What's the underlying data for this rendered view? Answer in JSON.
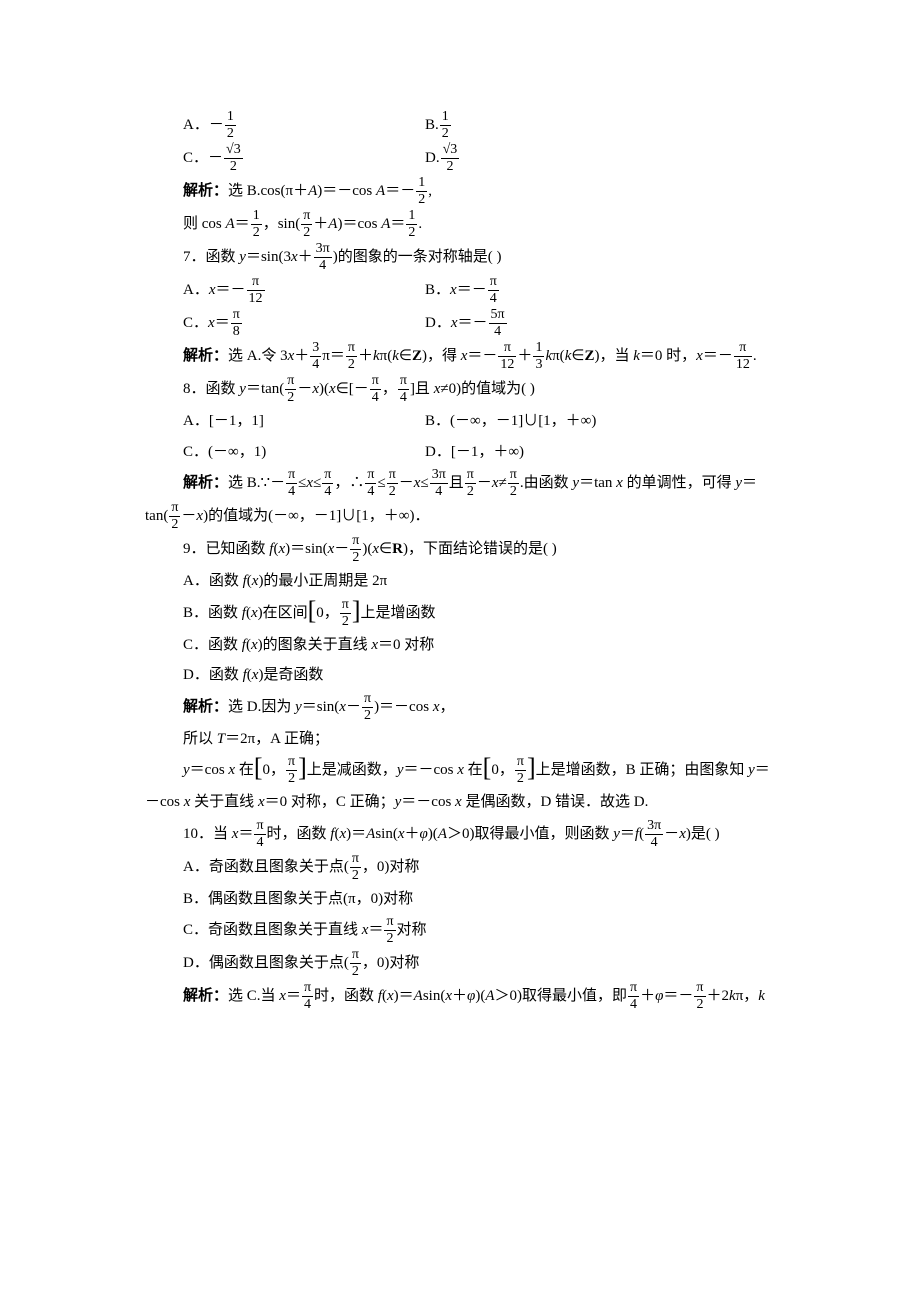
{
  "q6": {
    "optA": "A．－",
    "fracA": {
      "num": "1",
      "den": "2"
    },
    "optB": "B.",
    "fracB": {
      "num": "1",
      "den": "2"
    },
    "optC": "C．－",
    "fracC": {
      "num": "√3",
      "den": "2"
    },
    "optD": "D.",
    "fracD": {
      "num": "√3",
      "den": "2"
    },
    "sol1a": "解析：",
    "sol1b": "选 B.cos(π＋",
    "sol1c": ")＝－cos ",
    "sol1d": "＝－",
    "sol2a": "则 cos ",
    "sol2b": "＝",
    "sol2c": "，sin(",
    "sol2d": "＋",
    "sol2e": ")＝cos ",
    "sol2f": "＝",
    "A": "A",
    "half": {
      "num": "1",
      "den": "2"
    },
    "pi2": {
      "num": "π",
      "den": "2"
    },
    "period": "."
  },
  "q7": {
    "stem1": "7．函数 ",
    "stem2": "＝sin(3",
    "stem3": "＋",
    "frac_3pi4": {
      "num": "3π",
      "den": "4"
    },
    "stem4": ")的图象的一条对称轴是(        )",
    "optA1": "A．",
    "optA2": "＝－",
    "fracA": {
      "num": "π",
      "den": "12"
    },
    "optB1": "B．",
    "optB2": "＝－",
    "fracB": {
      "num": "π",
      "den": "4"
    },
    "optC1": "C．",
    "optC2": "＝",
    "fracC": {
      "num": "π",
      "den": "8"
    },
    "optD1": "D．",
    "optD2": "＝－",
    "fracD": {
      "num": "5π",
      "den": "4"
    },
    "sol1": "解析：",
    "sol2": "选 A.令 3",
    "sol3": "＋",
    "frac34": {
      "num": "3",
      "den": "4"
    },
    "sol4": "π＝",
    "fracpi2": {
      "num": "π",
      "den": "2"
    },
    "sol5": "＋",
    "sol6": "π(",
    "sol7": "∈",
    "sol8": ")，得 ",
    "sol9": "＝－",
    "fracpi12": {
      "num": "π",
      "den": "12"
    },
    "sol10": "＋",
    "frac13": {
      "num": "1",
      "den": "3"
    },
    "sol11": "π(",
    "sol12": "∈",
    "sol13": ")，当 ",
    "sol14": "＝0 时，",
    "sol15": "＝－",
    "y": "y",
    "x": "x",
    "k": "k",
    "Z": "Z",
    "period": "."
  },
  "q8": {
    "stem1": "8．函数 ",
    "stem2": "＝tan(",
    "fracpi2": {
      "num": "π",
      "den": "2"
    },
    "stem3": "－",
    "stem4": ")(",
    "stem5": "∈[－",
    "fracpi4": {
      "num": "π",
      "den": "4"
    },
    "stem6": "，",
    "stem7": "]且 ",
    "stem8": "≠0)的值域为(        )",
    "optA": "A．[－1，1]",
    "optB": "B．(－∞，－1]∪[1，＋∞)",
    "optC": "C．(－∞，1)",
    "optD": "D．[－1，＋∞)",
    "sol1": "解析：",
    "sol2": "选 B.∵－",
    "sol3": "≤",
    "sol4": "≤",
    "sol5": "，∴",
    "sol6": "≤",
    "sol7": "－",
    "sol8": "≤",
    "frac3pi4": {
      "num": "3π",
      "den": "4"
    },
    "sol9": "且",
    "sol10": "－",
    "sol11": "≠",
    "sol12": ".由函数 ",
    "sol13": "＝tan ",
    "sol14": " 的单调性，可得 ",
    "sol15": "＝",
    "sol_line2a": "tan(",
    "sol_line2b": "－",
    "sol_line2c": ")的值域为(－∞，－1]∪[1，＋∞)．",
    "y": "y",
    "x": "x"
  },
  "q9": {
    "stem1": "9．已知函数 ",
    "stem2": "(",
    "stem3": ")＝sin(",
    "stem4": "－",
    "fracpi2": {
      "num": "π",
      "den": "2"
    },
    "stem5": ")(",
    "stem6": "∈",
    "stem7": ")，下面结论错误的是(        )",
    "optA1": "A．函数 ",
    "optA2": "(",
    "optA3": ")的最小正周期是 2π",
    "optB1": "B．函数 ",
    "optB2": "(",
    "optB3": ")在区间",
    "optB4": "0，",
    "optB5": "上是增函数",
    "optC1": "C．函数 ",
    "optC2": "(",
    "optC3": ")的图象关于直线 ",
    "optC4": "＝0 对称",
    "optD1": "D．函数 ",
    "optD2": "(",
    "optD3": ")是奇函数",
    "sol1": "解析：",
    "sol2": "选 D.因为 ",
    "sol3": "＝sin(",
    "sol4": "－",
    "sol5": ")＝－cos ",
    "sol_line2": "所以 ",
    "sol_T": "T",
    "sol_line2b": "＝2π，A 正确；",
    "sol_line3a": "＝cos ",
    "sol_line3b": " 在",
    "sol_line3c": "0，",
    "sol_line3d": "上是减函数，",
    "sol_line3e": "＝－cos ",
    "sol_line3f": " 在",
    "sol_line3g": "上是增函数，B 正确；由图象知 ",
    "sol_line3h": "＝",
    "sol_line4a": "－cos ",
    "sol_line4b": " 关于直线 ",
    "sol_line4c": "＝0 对称，C 正确；",
    "sol_line4d": "＝－cos ",
    "sol_line4e": " 是偶函数，D 错误．故选 D.",
    "f": "f",
    "x": "x",
    "y": "y",
    "R": "R",
    "comma": "，"
  },
  "q10": {
    "stem1": "10．当 ",
    "stem2": "＝",
    "fracpi4": {
      "num": "π",
      "den": "4"
    },
    "stem3": "时，函数 ",
    "stem4": "(",
    "stem5": ")＝",
    "stem6": "sin(",
    "stem7": "＋",
    "stem8": ")(",
    "stem9": "＞0)取得最小值，则函数 ",
    "stem10": "＝",
    "stem11": "(",
    "frac3pi4": {
      "num": "3π",
      "den": "4"
    },
    "stem12": "－",
    "stem13": ")是(        )",
    "optA1": "A．奇函数且图象关于点(",
    "fracpi2": {
      "num": "π",
      "den": "2"
    },
    "optA2": "，0)对称",
    "optB": "B．偶函数且图象关于点(π，0)对称",
    "optC1": "C．奇函数且图象关于直线 ",
    "optC2": "＝",
    "optC3": "对称",
    "optD1": "D．偶函数且图象关于点(",
    "optD2": "，0)对称",
    "sol1": "解析：",
    "sol2": "选 C.当 ",
    "sol3": "＝",
    "sol4": "时，函数 ",
    "sol5": "(",
    "sol6": ")＝",
    "sol7": "sin(",
    "sol8": "＋",
    "sol9": ")(",
    "sol10": "＞0)取得最小值，即",
    "sol11": "＋",
    "sol12": "＝－",
    "sol13": "＋2",
    "sol14": "π，",
    "x": "x",
    "y": "y",
    "f": "f",
    "A": "A",
    "phi": "φ",
    "k": "k"
  },
  "colors": {
    "text": "#000000",
    "background": "#ffffff"
  },
  "typography": {
    "body_font_size": 15,
    "line_height": 1.9,
    "font_family": "SimSun"
  }
}
